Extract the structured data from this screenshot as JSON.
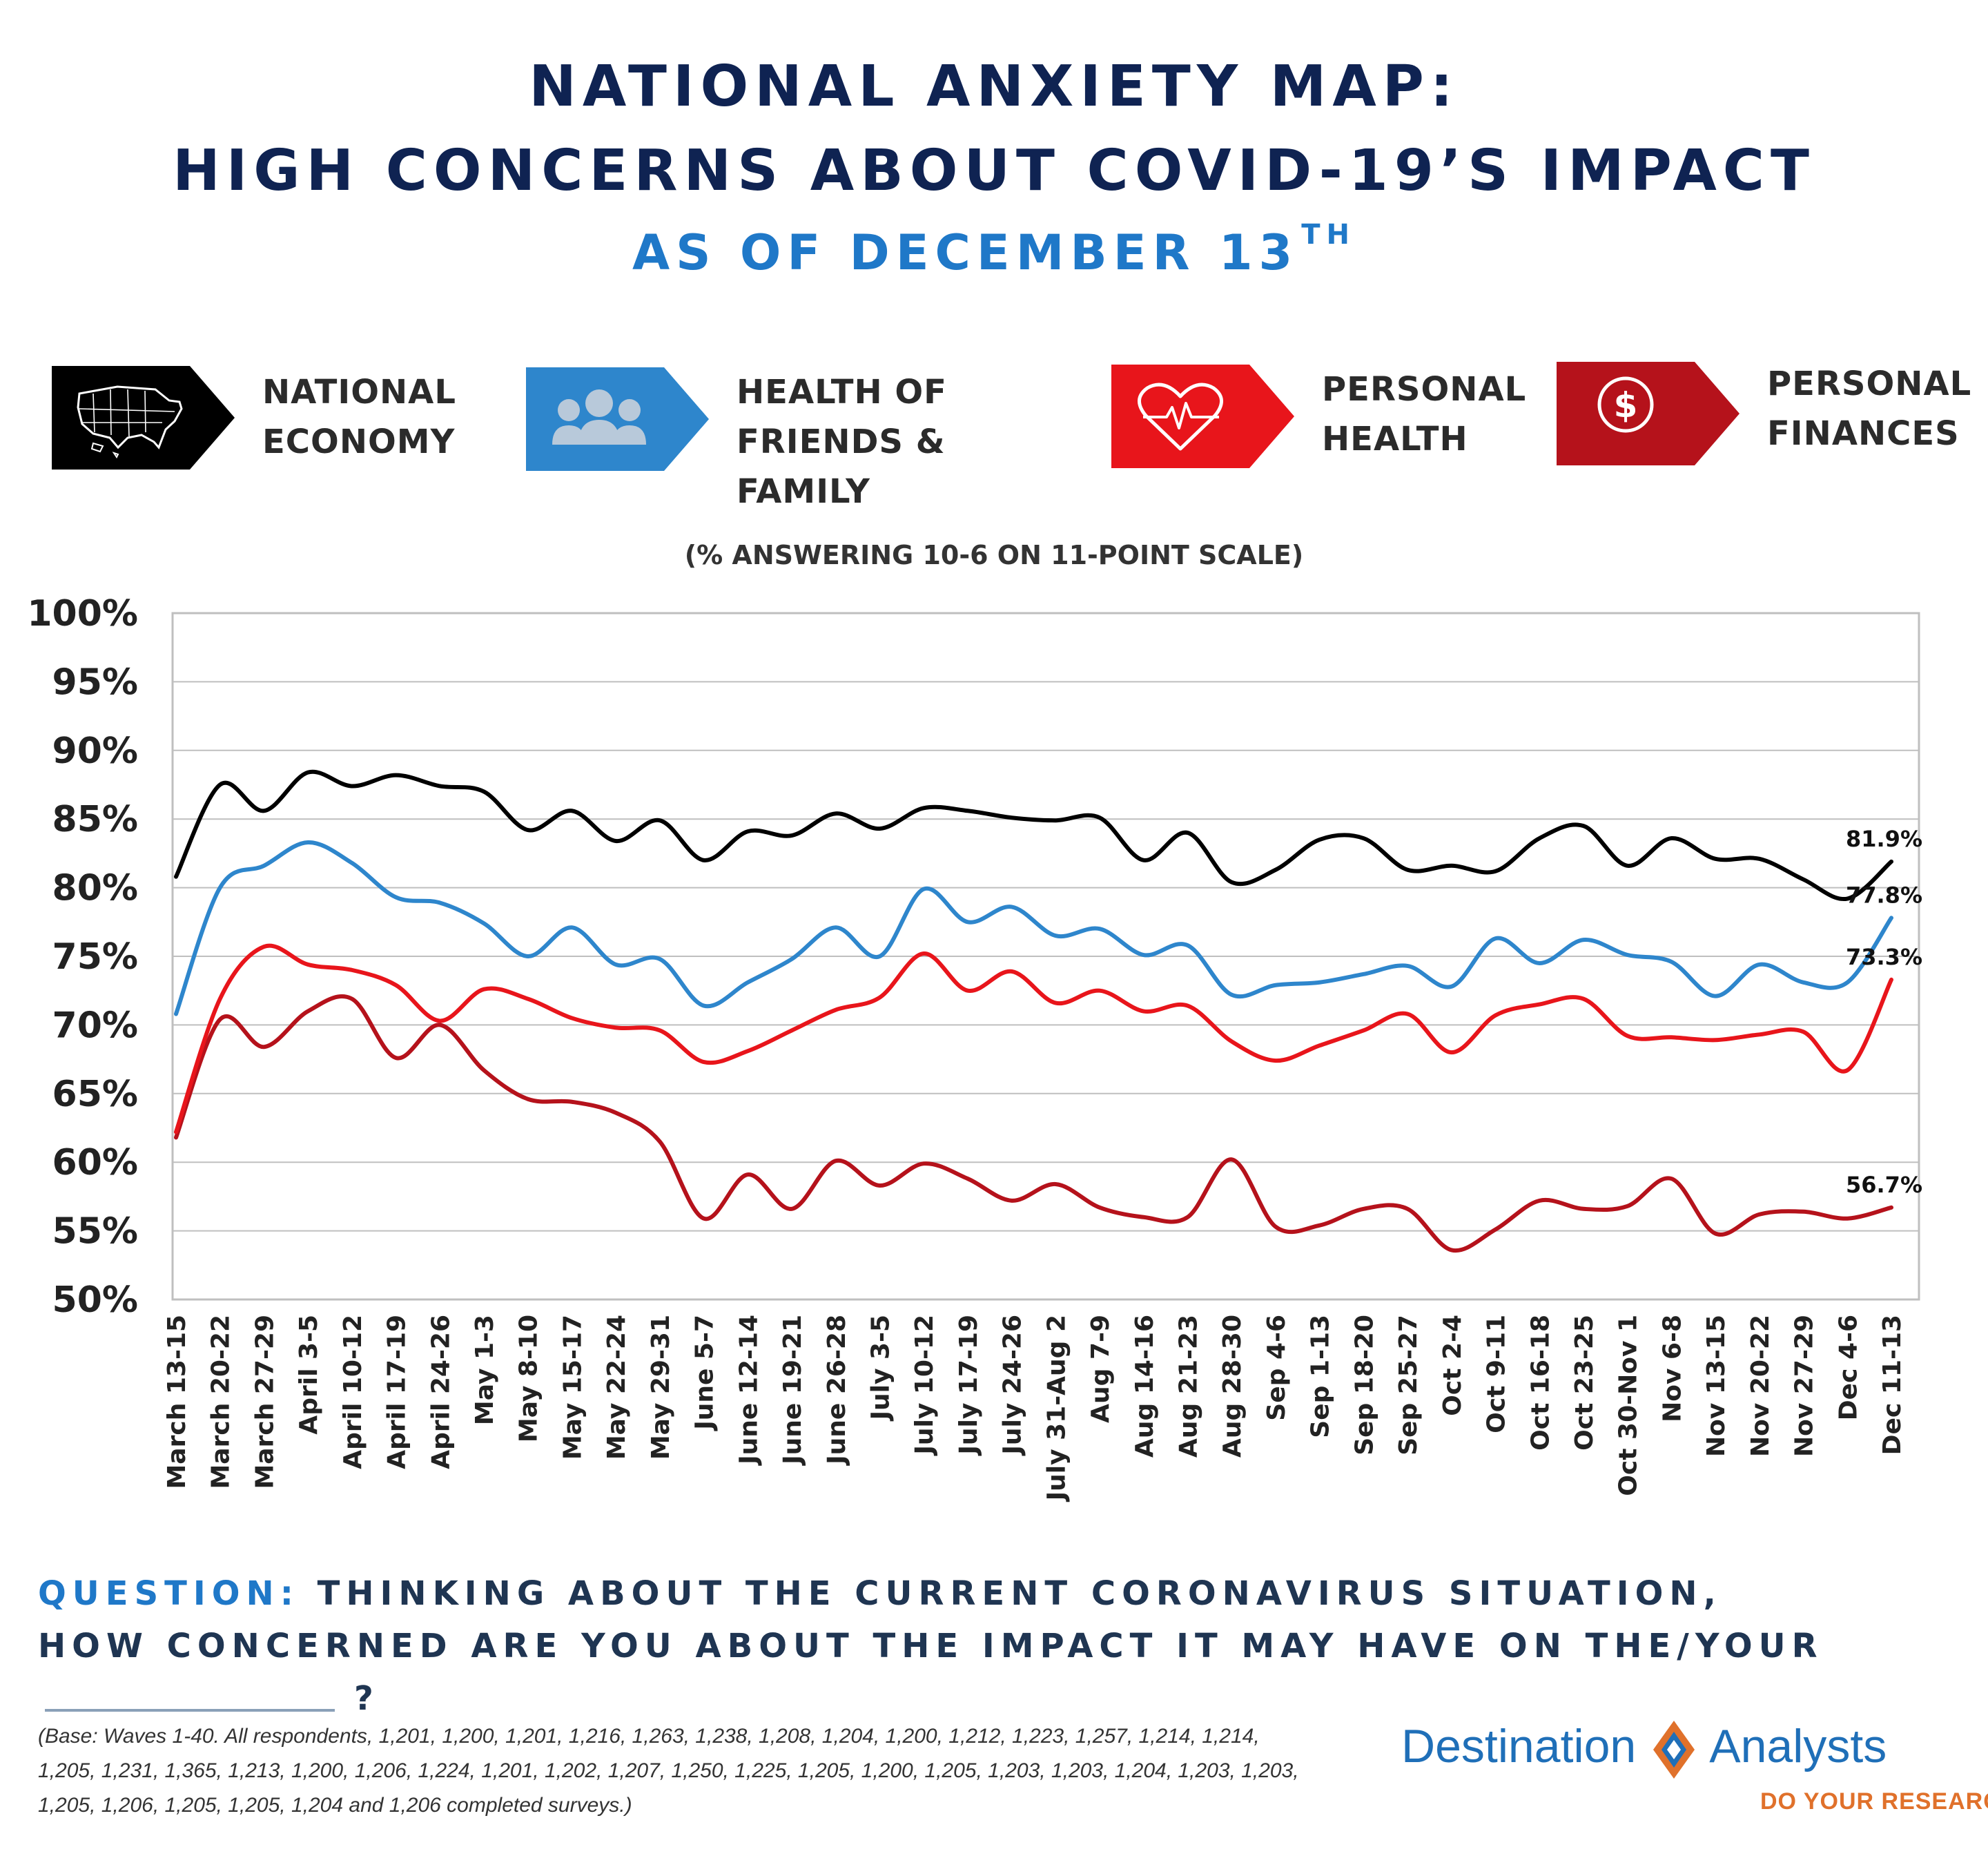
{
  "header": {
    "title_line1": "NATIONAL ANXIETY MAP:",
    "title_line2": "HIGH CONCERNS ABOUT COVID-19’S IMPACT",
    "subtitle": "AS OF DECEMBER 13",
    "subtitle_sup": "TH"
  },
  "legend": [
    {
      "label": "NATIONAL\nECONOMY",
      "icon": "us-map-icon",
      "color": "#000000"
    },
    {
      "label": "HEALTH OF\nFRIENDS & FAMILY",
      "icon": "people-group-icon",
      "color": "#2e86cc"
    },
    {
      "label": "PERSONAL\nHEALTH",
      "icon": "heart-pulse-icon",
      "color": "#e8151b"
    },
    {
      "label": "PERSONAL\nFINANCES",
      "icon": "dollar-coin-icon",
      "color": "#b5121b"
    }
  ],
  "scale_note": "(% ANSWERING 10-6 ON 11-POINT SCALE)",
  "chart_data": {
    "type": "line",
    "title": "",
    "xlabel": "",
    "ylabel": "",
    "ylim": [
      50,
      100
    ],
    "y_ticks": [
      100,
      95,
      90,
      85,
      80,
      75,
      70,
      65,
      60,
      55,
      50
    ],
    "y_tick_format": "{v}%",
    "grid": true,
    "legend_position": "top",
    "categories": [
      "March 13-15",
      "March 20-22",
      "March 27-29",
      "April 3-5",
      "April 10-12",
      "April 17-19",
      "April 24-26",
      "May 1-3",
      "May 8-10",
      "May 15-17",
      "May 22-24",
      "May 29-31",
      "June 5-7",
      "June 12-14",
      "June 19-21",
      "June 26-28",
      "July 3-5",
      "July 10-12",
      "July 17-19",
      "July 24-26",
      "July 31-Aug 2",
      "Aug 7-9",
      "Aug 14-16",
      "Aug 21-23",
      "Aug 28-30",
      "Sep 4-6",
      "Sep 1-13",
      "Sep 18-20",
      "Sep 25-27",
      "Oct 2-4",
      "Oct 9-11",
      "Oct 16-18",
      "Oct 23-25",
      "Oct 30-Nov 1",
      "Nov 6-8",
      "Nov 13-15",
      "Nov 20-22",
      "Nov 27-29",
      "Dec 4-6",
      "Dec 11-13"
    ],
    "series": [
      {
        "name": "NATIONAL ECONOMY",
        "color": "#000000",
        "values": [
          80.8,
          87.5,
          85.6,
          88.4,
          87.4,
          88.2,
          87.4,
          87.0,
          84.2,
          85.6,
          83.4,
          84.9,
          82.0,
          84.1,
          83.8,
          85.4,
          84.3,
          85.8,
          85.6,
          85.1,
          84.9,
          85.1,
          82.0,
          84.0,
          80.4,
          81.3,
          83.5,
          83.6,
          81.3,
          81.6,
          81.2,
          83.6,
          84.5,
          81.6,
          83.6,
          82.1,
          82.1,
          80.6,
          79.2,
          81.9
        ],
        "end_label": "81.9%"
      },
      {
        "name": "HEALTH OF FRIENDS & FAMILY",
        "color": "#2e86cc",
        "values": [
          70.8,
          80.0,
          81.6,
          83.3,
          81.8,
          79.3,
          78.9,
          77.4,
          75.0,
          77.1,
          74.4,
          74.8,
          71.4,
          73.1,
          74.8,
          77.1,
          75.0,
          79.9,
          77.5,
          78.6,
          76.5,
          77.0,
          75.1,
          75.8,
          72.2,
          72.9,
          73.1,
          73.7,
          74.3,
          72.8,
          76.3,
          74.5,
          76.2,
          75.1,
          74.6,
          72.1,
          74.4,
          73.1,
          73.1,
          77.8
        ],
        "end_label": "77.8%"
      },
      {
        "name": "PERSONAL HEALTH",
        "color": "#e8151b",
        "values": [
          62.2,
          71.9,
          75.7,
          74.4,
          74.0,
          72.9,
          70.3,
          72.6,
          71.9,
          70.5,
          69.8,
          69.6,
          67.3,
          68.1,
          69.6,
          71.1,
          72.0,
          75.2,
          72.5,
          73.9,
          71.6,
          72.5,
          71.0,
          71.4,
          68.8,
          67.4,
          68.5,
          69.6,
          70.8,
          68.0,
          70.7,
          71.5,
          71.9,
          69.2,
          69.1,
          68.9,
          69.3,
          69.5,
          66.7,
          73.3
        ],
        "end_label": "73.3%"
      },
      {
        "name": "PERSONAL FINANCES",
        "color": "#b5121b",
        "values": [
          61.8,
          70.4,
          68.4,
          71.0,
          71.9,
          67.6,
          70.0,
          66.7,
          64.6,
          64.4,
          63.6,
          61.5,
          55.9,
          59.1,
          56.6,
          60.1,
          58.3,
          59.9,
          58.8,
          57.2,
          58.4,
          56.7,
          56.0,
          56.0,
          60.2,
          55.3,
          55.4,
          56.6,
          56.6,
          53.6,
          55.1,
          57.2,
          56.6,
          56.8,
          58.8,
          54.8,
          56.2,
          56.4,
          55.9,
          56.7
        ],
        "end_label": "56.7%"
      }
    ]
  },
  "question": {
    "label": "QUESTION:",
    "line1": "THINKING ABOUT THE CURRENT CORONAVIRUS SITUATION,",
    "line2": "HOW CONCERNED ARE YOU ABOUT THE IMPACT IT MAY HAVE ON THE/YOUR",
    "end": "?"
  },
  "base_note": "(Base: Waves 1-40. All respondents, 1,201, 1,200, 1,201, 1,216, 1,263, 1,238, 1,208, 1,204, 1,200, 1,212, 1,223, 1,257, 1,214, 1,214, 1,205, 1,231, 1,365, 1,213, 1,200, 1,206, 1,224, 1,201, 1,202, 1,207, 1,250, 1,225, 1,205, 1,200, 1,205, 1,203, 1,203, 1,204, 1,203, 1,203, 1,205, 1,206, 1,205, 1,205, 1,204 and 1,206 completed surveys.)",
  "brand": {
    "name_left": "Destination",
    "name_right": "Analysts",
    "tagline": "DO YOUR RESEARCH",
    "logo": "diamond-logo",
    "color_blue": "#1f6fb8",
    "color_orange": "#e0712b"
  }
}
